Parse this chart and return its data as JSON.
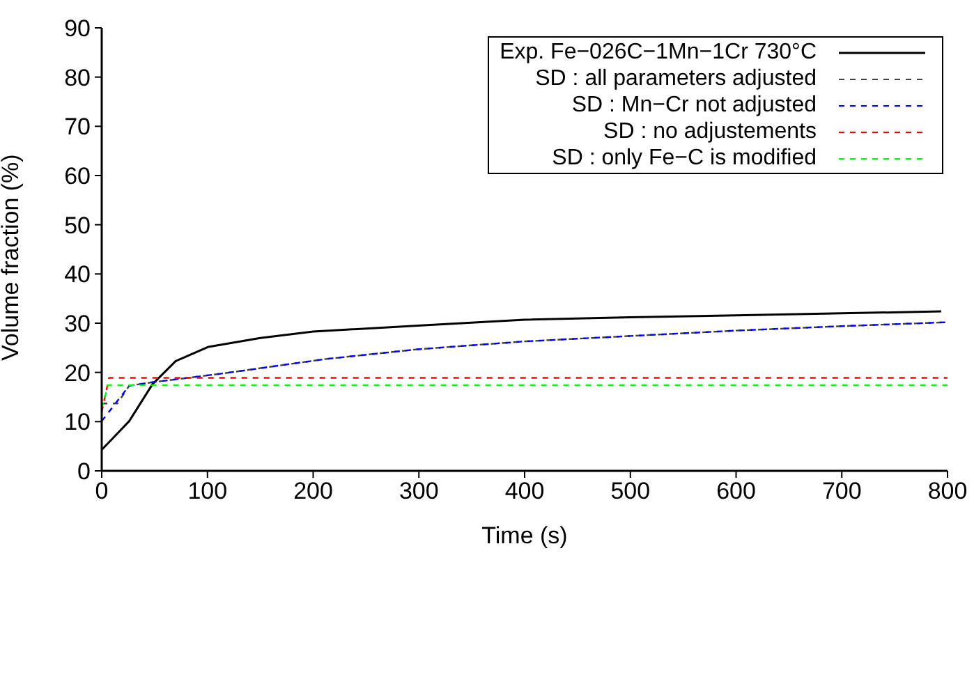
{
  "chart_data": {
    "type": "line",
    "xlabel": "Time (s)",
    "ylabel": "Volume fraction (%)",
    "xlim": [
      0,
      800
    ],
    "xticks": [
      0,
      100,
      200,
      300,
      400,
      500,
      600,
      700,
      800
    ],
    "ylim": [
      0,
      90
    ],
    "yticks": [
      0,
      10,
      20,
      30,
      40,
      50,
      60,
      70,
      80,
      90
    ],
    "grid": false,
    "legend": "top right",
    "marker": "none",
    "series": [
      {
        "name": "Exp. Fe−026C−1Mn−1Cr 730°C",
        "color": "#000000",
        "line_style": "solid",
        "x": [
          0,
          10,
          26,
          48,
          70,
          101,
          150,
          200,
          299,
          400,
          500,
          600,
          700,
          794
        ],
        "values": [
          4.3,
          6.5,
          10.1,
          17.6,
          22.3,
          25.2,
          27,
          28.3,
          29.5,
          30.7,
          31.2,
          31.6,
          32,
          32.4
        ]
      },
      {
        "name": "SD : all parameters adjusted",
        "color": "#404040",
        "line_style": "dashed",
        "x": [
          0,
          15,
          26,
          48,
          115,
          211,
          299,
          400,
          500,
          600,
          700,
          800
        ],
        "values": [
          13.7,
          13.7,
          17.3,
          18,
          19.8,
          22.7,
          24.7,
          26.3,
          27.4,
          28.5,
          29.4,
          30.2
        ]
      },
      {
        "name": "SD : Mn−Cr not adjusted",
        "color": "#0000ff",
        "line_style": "dashed",
        "x": [
          0,
          26,
          48,
          115,
          211,
          299,
          400,
          500,
          600,
          700,
          800
        ],
        "values": [
          10.1,
          17.3,
          18,
          19.8,
          22.7,
          24.7,
          26.3,
          27.4,
          28.5,
          29.4,
          30.2
        ]
      },
      {
        "name": "SD : no adjustements",
        "color": "#ff0000",
        "line_style": "dashed",
        "x": [
          0,
          7,
          800
        ],
        "values": [
          12,
          18.9,
          18.9
        ]
      },
      {
        "name": "SD : only Fe−C is modified",
        "color": "#00ff00",
        "line_style": "dashed",
        "x": [
          0,
          6,
          800
        ],
        "values": [
          12.7,
          17.4,
          17.4
        ]
      }
    ]
  }
}
